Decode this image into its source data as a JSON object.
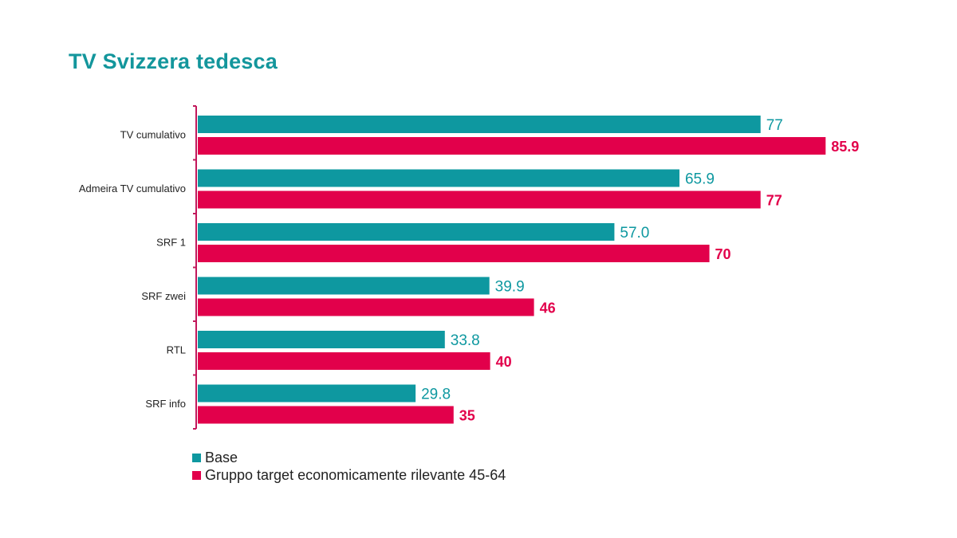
{
  "title": "TV Svizzera tedesca",
  "colors": {
    "base": "#0e98a0",
    "target": "#e2004b",
    "axis": "#c2185b"
  },
  "chart_data": {
    "type": "bar",
    "orientation": "horizontal",
    "title": "TV Svizzera tedesca",
    "categories": [
      "TV cumulativo",
      "Admeira TV cumulativo",
      "SRF 1",
      "SRF zwei",
      "RTL",
      "SRF info"
    ],
    "series": [
      {
        "name": "Base",
        "values": [
          77,
          65.9,
          57.0,
          39.9,
          33.8,
          29.8
        ],
        "labels": [
          "77",
          "65.9",
          "57.0",
          "39.9",
          "33.8",
          "29.8"
        ]
      },
      {
        "name": "Gruppo target economicamente rilevante 45-64",
        "values": [
          85.9,
          77,
          70,
          46,
          40,
          35
        ],
        "labels": [
          "85.9",
          "77",
          "70",
          "46",
          "40",
          "35"
        ]
      }
    ],
    "xlim": [
      0,
      100
    ],
    "grid": false,
    "legend_position": "bottom-left"
  }
}
